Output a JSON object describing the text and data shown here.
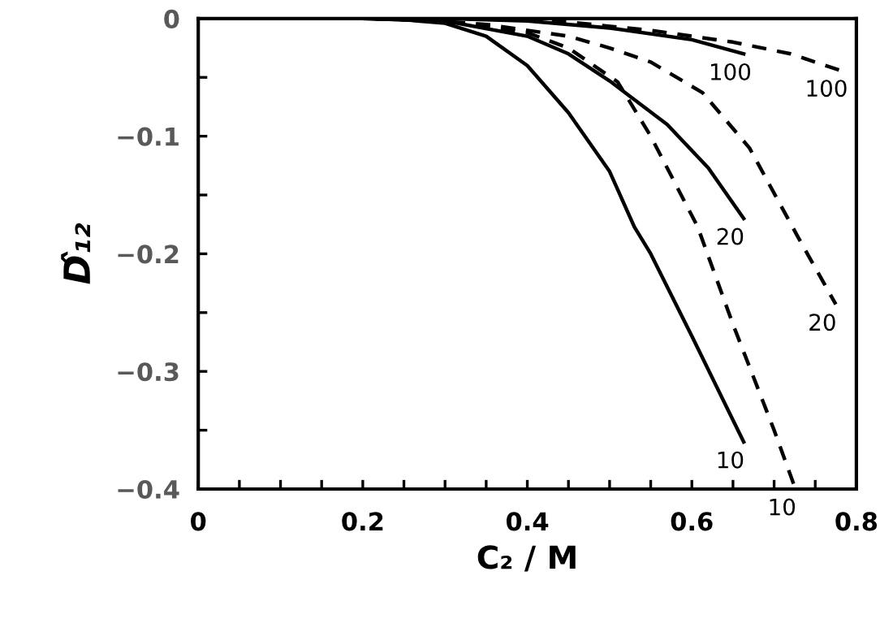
{
  "chart_data": {
    "type": "line",
    "xlabel": "C₂ / M",
    "ylabel": "D̂₁₂",
    "xlim": [
      0,
      0.8
    ],
    "ylim": [
      -0.4,
      0
    ],
    "xticks": [
      0,
      {
        "value": 0.05,
        "label": null
      },
      {
        "value": 0.1,
        "label": null
      },
      {
        "value": 0.15,
        "label": null
      },
      0.2,
      {
        "value": 0.25,
        "label": null
      },
      {
        "value": 0.3,
        "label": null
      },
      {
        "value": 0.35,
        "label": null
      },
      0.4,
      {
        "value": 0.45,
        "label": null
      },
      {
        "value": 0.5,
        "label": null
      },
      {
        "value": 0.55,
        "label": null
      },
      0.6,
      {
        "value": 0.65,
        "label": null
      },
      {
        "value": 0.7,
        "label": null
      },
      {
        "value": 0.75,
        "label": null
      },
      0.8
    ],
    "yticks": [
      0,
      {
        "value": -0.05,
        "label": null
      },
      {
        "value": -0.1,
        "label": "−0.1"
      },
      {
        "value": -0.15,
        "label": null
      },
      {
        "value": -0.2,
        "label": "−0.2"
      },
      {
        "value": -0.25,
        "label": null
      },
      {
        "value": -0.3,
        "label": "−0.3"
      },
      {
        "value": -0.35,
        "label": null
      },
      {
        "value": -0.4,
        "label": "−0.4"
      }
    ],
    "grid": false,
    "legend": false,
    "marker": "none",
    "series": [
      {
        "name": "10",
        "color": "#000000",
        "line_style": "solid",
        "x": [
          0,
          0.2,
          0.25,
          0.3,
          0.35,
          0.4,
          0.45,
          0.5,
          0.53,
          0.55,
          0.6,
          0.663
        ],
        "values": [
          0,
          0,
          -0.001,
          -0.004,
          -0.015,
          -0.04,
          -0.08,
          -0.13,
          -0.177,
          -0.2,
          -0.27,
          -0.36
        ]
      },
      {
        "name": "20",
        "color": "#000000",
        "line_style": "solid",
        "x": [
          0,
          0.2,
          0.3,
          0.4,
          0.45,
          0.5,
          0.57,
          0.62,
          0.663
        ],
        "values": [
          0,
          0,
          -0.002,
          -0.015,
          -0.03,
          -0.053,
          -0.09,
          -0.127,
          -0.17
        ]
      },
      {
        "name": "100",
        "color": "#000000",
        "line_style": "solid",
        "x": [
          0,
          0.3,
          0.4,
          0.5,
          0.6,
          0.663
        ],
        "values": [
          0,
          0,
          -0.002,
          -0.008,
          -0.018,
          -0.03
        ]
      },
      {
        "name": "10",
        "color": "#000000",
        "line_style": "dashed",
        "x": [
          0,
          0.2,
          0.3,
          0.4,
          0.45,
          0.51,
          0.55,
          0.607,
          0.65,
          0.7,
          0.726
        ],
        "values": [
          0,
          0,
          -0.002,
          -0.012,
          -0.025,
          -0.054,
          -0.1,
          -0.177,
          -0.26,
          -0.35,
          -0.4
        ]
      },
      {
        "name": "20",
        "color": "#000000",
        "line_style": "dashed",
        "x": [
          0,
          0.25,
          0.35,
          0.45,
          0.5,
          0.55,
          0.613,
          0.67,
          0.73,
          0.775
        ],
        "values": [
          0,
          0,
          -0.005,
          -0.015,
          -0.025,
          -0.037,
          -0.063,
          -0.11,
          -0.187,
          -0.243
        ]
      },
      {
        "name": "100",
        "color": "#000000",
        "line_style": "dashed",
        "x": [
          0,
          0.35,
          0.45,
          0.55,
          0.65,
          0.72,
          0.78
        ],
        "values": [
          0,
          0,
          -0.003,
          -0.01,
          -0.02,
          -0.03,
          -0.044
        ]
      }
    ]
  }
}
